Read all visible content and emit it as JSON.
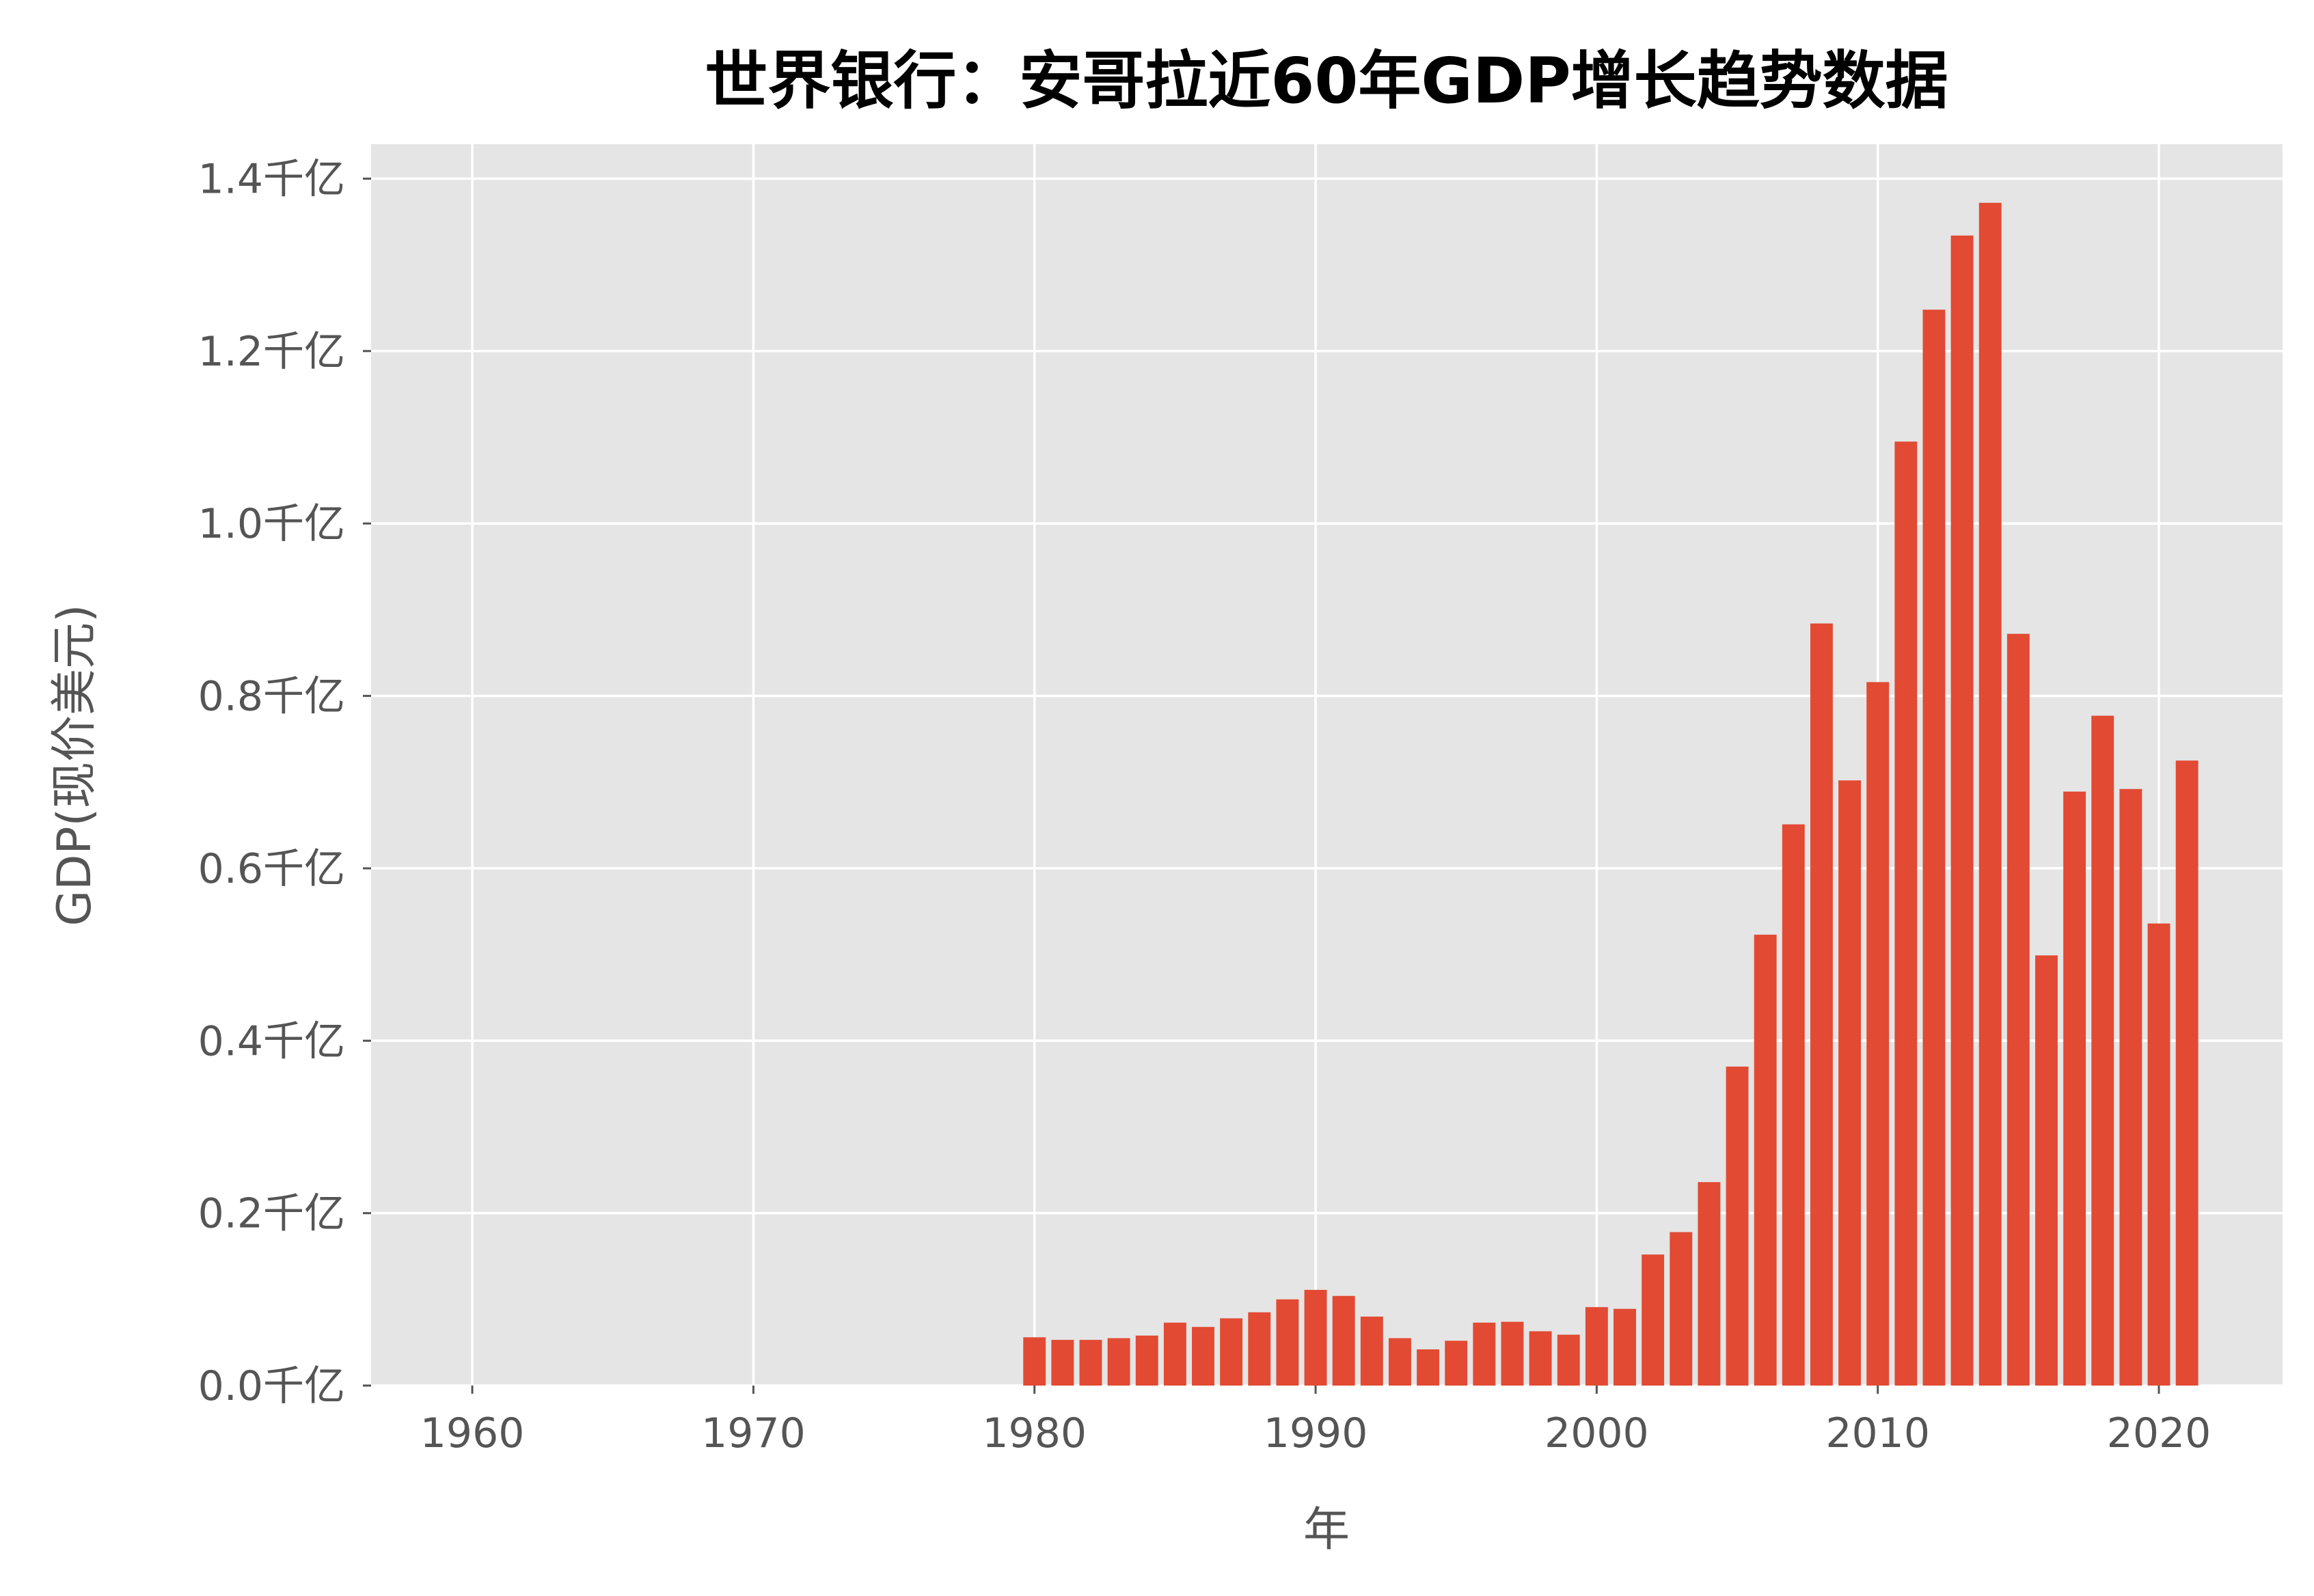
{
  "chart_data": {
    "type": "bar",
    "title": "世界银行：安哥拉近60年GDP增长趋势数据",
    "xlabel": "年",
    "ylabel": "GDP(现价美元)",
    "x_ticks": [
      "1960",
      "1970",
      "1980",
      "1990",
      "2000",
      "2010",
      "2020"
    ],
    "y_ticks": [
      "0.0千亿",
      "0.2千亿",
      "0.4千亿",
      "0.6千亿",
      "0.8千亿",
      "1.0千亿",
      "1.2千亿",
      "1.4千亿"
    ],
    "xlim": [
      1956.4,
      2024.4
    ],
    "ylim": [
      0,
      1.44
    ],
    "y_unit": "千亿 (×1e11 USD)",
    "grid": true,
    "colors": {
      "bar": "#E24A33",
      "plot_bg": "#E5E5E5",
      "grid": "#FFFFFF",
      "text": "#555555",
      "title": "#000000"
    },
    "x": [
      1980,
      1981,
      1982,
      1983,
      1984,
      1985,
      1986,
      1987,
      1988,
      1989,
      1990,
      1991,
      1992,
      1993,
      1994,
      1995,
      1996,
      1997,
      1998,
      1999,
      2000,
      2001,
      2002,
      2003,
      2004,
      2005,
      2006,
      2007,
      2008,
      2009,
      2010,
      2011,
      2012,
      2013,
      2014,
      2015,
      2016,
      2017,
      2018,
      2019,
      2020,
      2021
    ],
    "values": [
      0.056,
      0.053,
      0.053,
      0.055,
      0.058,
      0.073,
      0.068,
      0.078,
      0.085,
      0.1,
      0.111,
      0.104,
      0.08,
      0.055,
      0.042,
      0.052,
      0.073,
      0.074,
      0.063,
      0.059,
      0.091,
      0.089,
      0.152,
      0.178,
      0.236,
      0.37,
      0.523,
      0.651,
      0.884,
      0.702,
      0.816,
      1.095,
      1.248,
      1.334,
      1.372,
      0.872,
      0.499,
      0.689,
      0.777,
      0.692,
      0.536,
      0.725
    ]
  }
}
